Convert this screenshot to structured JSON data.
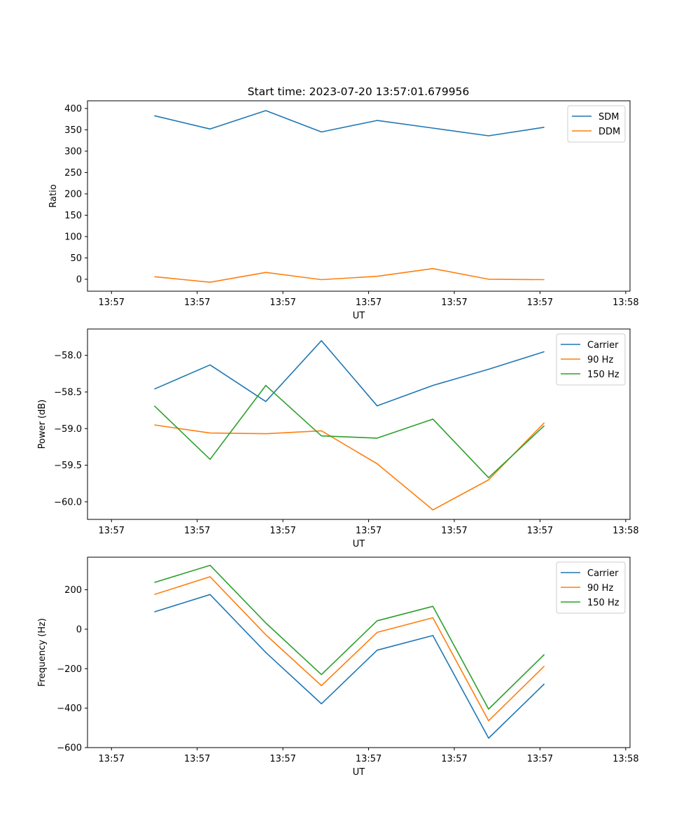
{
  "figure_title": "Start time: 2023-07-20 13:57:01.679956",
  "chart_data": [
    {
      "type": "line",
      "title": "Start time: 2023-07-20 13:57:01.679956",
      "xlabel": "UT",
      "ylabel": "Ratio",
      "x_tick_labels": [
        "13:57",
        "13:57",
        "13:57",
        "13:57",
        "13:57",
        "13:57",
        "13:58"
      ],
      "xlim": [
        -0.28,
        6.05
      ],
      "x": [
        0.5,
        1.15,
        1.8,
        2.45,
        3.1,
        3.75,
        4.4,
        5.05
      ],
      "ylim": [
        -28,
        418
      ],
      "y_ticks": [
        0,
        50,
        100,
        150,
        200,
        250,
        300,
        350,
        400
      ],
      "legend": "upper right",
      "series": [
        {
          "name": "SDM",
          "color": "#1f77b4",
          "values": [
            383,
            352,
            395,
            345,
            372,
            354,
            336,
            356
          ]
        },
        {
          "name": "DDM",
          "color": "#ff7f0e",
          "values": [
            6,
            -7,
            16,
            -1,
            7,
            25,
            0,
            -1
          ]
        }
      ]
    },
    {
      "type": "line",
      "xlabel": "UT",
      "ylabel": "Power (dB)",
      "x_tick_labels": [
        "13:57",
        "13:57",
        "13:57",
        "13:57",
        "13:57",
        "13:57",
        "13:58"
      ],
      "xlim": [
        -0.28,
        6.05
      ],
      "x": [
        0.5,
        1.15,
        1.8,
        2.45,
        3.1,
        3.75,
        4.4,
        5.05
      ],
      "ylim": [
        -60.24,
        -57.64
      ],
      "y_ticks": [
        -60.0,
        -59.5,
        -59.0,
        -58.5,
        -58.0
      ],
      "y_tick_labels": [
        "−60.0",
        "−59.5",
        "−59.0",
        "−58.5",
        "−58.0"
      ],
      "legend": "upper right",
      "series": [
        {
          "name": "Carrier",
          "color": "#1f77b4",
          "values": [
            -58.46,
            -58.13,
            -58.63,
            -57.8,
            -58.69,
            -58.41,
            -58.19,
            -57.95
          ]
        },
        {
          "name": "90 Hz",
          "color": "#ff7f0e",
          "values": [
            -58.95,
            -59.06,
            -59.07,
            -59.03,
            -59.48,
            -60.11,
            -59.7,
            -58.92
          ]
        },
        {
          "name": "150 Hz",
          "color": "#2ca02c",
          "values": [
            -58.69,
            -59.42,
            -58.41,
            -59.1,
            -59.13,
            -58.87,
            -59.67,
            -58.96
          ]
        }
      ]
    },
    {
      "type": "line",
      "xlabel": "UT",
      "ylabel": "Frequency (Hz)",
      "x_tick_labels": [
        "13:57",
        "13:57",
        "13:57",
        "13:57",
        "13:57",
        "13:57",
        "13:58"
      ],
      "xlim": [
        -0.28,
        6.05
      ],
      "x": [
        0.5,
        1.15,
        1.8,
        2.45,
        3.1,
        3.75,
        4.4,
        5.05
      ],
      "ylim": [
        -600,
        365
      ],
      "y_ticks": [
        -600,
        -400,
        -200,
        0,
        200
      ],
      "y_tick_labels": [
        "−600",
        "−400",
        "−200",
        "0",
        "200"
      ],
      "legend": "upper right",
      "series": [
        {
          "name": "Carrier",
          "color": "#1f77b4",
          "values": [
            88,
            176,
            -118,
            -378,
            -106,
            -32,
            -552,
            -277
          ]
        },
        {
          "name": "90 Hz",
          "color": "#ff7f0e",
          "values": [
            176,
            266,
            -28,
            -286,
            -16,
            58,
            -464,
            -187
          ]
        },
        {
          "name": "150 Hz",
          "color": "#2ca02c",
          "values": [
            237,
            324,
            32,
            -230,
            43,
            116,
            -405,
            -128
          ]
        }
      ]
    }
  ]
}
